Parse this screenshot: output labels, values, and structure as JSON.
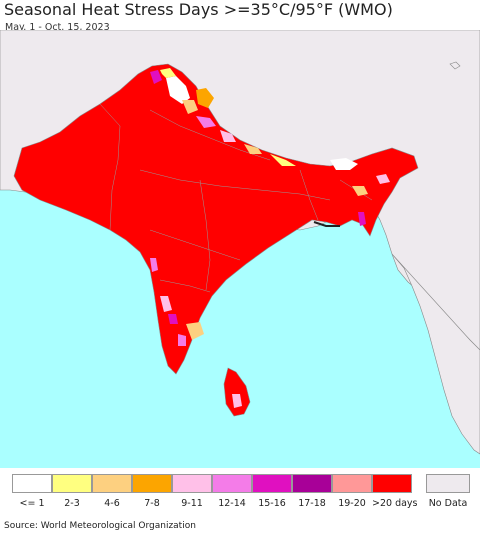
{
  "title": "Seasonal Heat Stress Days >=35°C/95°F (WMO)",
  "subtitle": "May. 1 - Oct. 15, 2023",
  "legend": {
    "bins": [
      {
        "label": "<= 1",
        "color": "#ffffff"
      },
      {
        "label": "2-3",
        "color": "#ffff80"
      },
      {
        "label": "4-6",
        "color": "#fdd080"
      },
      {
        "label": "7-8",
        "color": "#fca500"
      },
      {
        "label": "9-11",
        "color": "#ffc0e8"
      },
      {
        "label": "12-14",
        "color": "#f47ce8"
      },
      {
        "label": "15-16",
        "color": "#e010c0"
      },
      {
        "label": "17-18",
        "color": "#a80098"
      },
      {
        "label": "19-20",
        "color": "#ff9898"
      },
      {
        "label": ">20 days",
        "color": "#ff0000"
      }
    ],
    "no_data": {
      "label": "No Data",
      "color": "#eeeaee"
    }
  },
  "colors": {
    "ocean": "#aaffff",
    "land_no_data": "#eeeaee",
    "border": "#888888"
  },
  "source": "Source: World Meteorological Organization"
}
